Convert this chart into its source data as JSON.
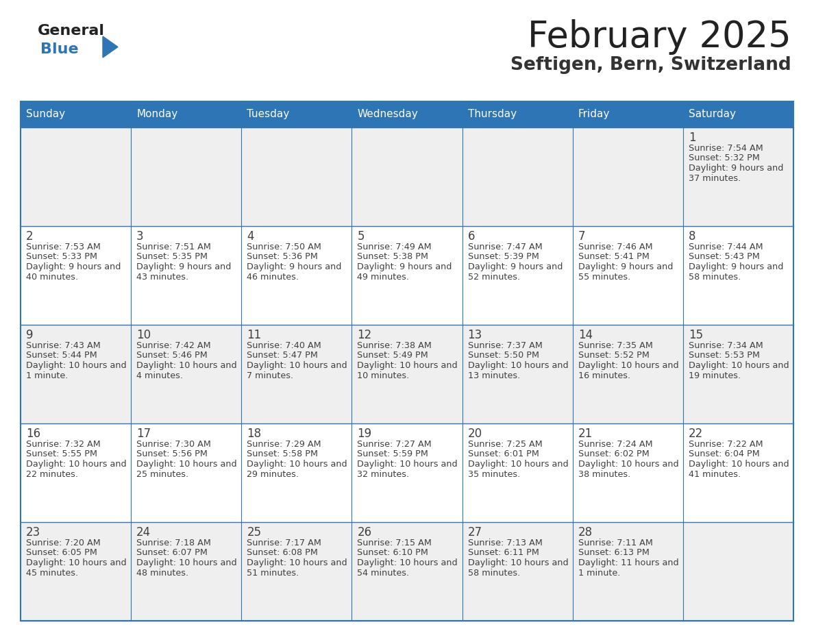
{
  "title": "February 2025",
  "subtitle": "Seftigen, Bern, Switzerland",
  "days_of_week": [
    "Sunday",
    "Monday",
    "Tuesday",
    "Wednesday",
    "Thursday",
    "Friday",
    "Saturday"
  ],
  "header_bg": "#2e75b6",
  "header_text_color": "#ffffff",
  "cell_bg_odd": "#efefef",
  "cell_bg_even": "#ffffff",
  "border_color": "#2e75b6",
  "day_number_color": "#404040",
  "text_color": "#404040",
  "title_color": "#222222",
  "subtitle_color": "#333333",
  "logo_general_color": "#222222",
  "logo_blue_color": "#2e75b6",
  "weeks": [
    [
      null,
      null,
      null,
      null,
      null,
      null,
      1
    ],
    [
      2,
      3,
      4,
      5,
      6,
      7,
      8
    ],
    [
      9,
      10,
      11,
      12,
      13,
      14,
      15
    ],
    [
      16,
      17,
      18,
      19,
      20,
      21,
      22
    ],
    [
      23,
      24,
      25,
      26,
      27,
      28,
      null
    ]
  ],
  "cell_data": {
    "1": {
      "sunrise": "7:54 AM",
      "sunset": "5:32 PM",
      "daylight": "9 hours and 37 minutes"
    },
    "2": {
      "sunrise": "7:53 AM",
      "sunset": "5:33 PM",
      "daylight": "9 hours and 40 minutes"
    },
    "3": {
      "sunrise": "7:51 AM",
      "sunset": "5:35 PM",
      "daylight": "9 hours and 43 minutes"
    },
    "4": {
      "sunrise": "7:50 AM",
      "sunset": "5:36 PM",
      "daylight": "9 hours and 46 minutes"
    },
    "5": {
      "sunrise": "7:49 AM",
      "sunset": "5:38 PM",
      "daylight": "9 hours and 49 minutes"
    },
    "6": {
      "sunrise": "7:47 AM",
      "sunset": "5:39 PM",
      "daylight": "9 hours and 52 minutes"
    },
    "7": {
      "sunrise": "7:46 AM",
      "sunset": "5:41 PM",
      "daylight": "9 hours and 55 minutes"
    },
    "8": {
      "sunrise": "7:44 AM",
      "sunset": "5:43 PM",
      "daylight": "9 hours and 58 minutes"
    },
    "9": {
      "sunrise": "7:43 AM",
      "sunset": "5:44 PM",
      "daylight": "10 hours and 1 minute"
    },
    "10": {
      "sunrise": "7:42 AM",
      "sunset": "5:46 PM",
      "daylight": "10 hours and 4 minutes"
    },
    "11": {
      "sunrise": "7:40 AM",
      "sunset": "5:47 PM",
      "daylight": "10 hours and 7 minutes"
    },
    "12": {
      "sunrise": "7:38 AM",
      "sunset": "5:49 PM",
      "daylight": "10 hours and 10 minutes"
    },
    "13": {
      "sunrise": "7:37 AM",
      "sunset": "5:50 PM",
      "daylight": "10 hours and 13 minutes"
    },
    "14": {
      "sunrise": "7:35 AM",
      "sunset": "5:52 PM",
      "daylight": "10 hours and 16 minutes"
    },
    "15": {
      "sunrise": "7:34 AM",
      "sunset": "5:53 PM",
      "daylight": "10 hours and 19 minutes"
    },
    "16": {
      "sunrise": "7:32 AM",
      "sunset": "5:55 PM",
      "daylight": "10 hours and 22 minutes"
    },
    "17": {
      "sunrise": "7:30 AM",
      "sunset": "5:56 PM",
      "daylight": "10 hours and 25 minutes"
    },
    "18": {
      "sunrise": "7:29 AM",
      "sunset": "5:58 PM",
      "daylight": "10 hours and 29 minutes"
    },
    "19": {
      "sunrise": "7:27 AM",
      "sunset": "5:59 PM",
      "daylight": "10 hours and 32 minutes"
    },
    "20": {
      "sunrise": "7:25 AM",
      "sunset": "6:01 PM",
      "daylight": "10 hours and 35 minutes"
    },
    "21": {
      "sunrise": "7:24 AM",
      "sunset": "6:02 PM",
      "daylight": "10 hours and 38 minutes"
    },
    "22": {
      "sunrise": "7:22 AM",
      "sunset": "6:04 PM",
      "daylight": "10 hours and 41 minutes"
    },
    "23": {
      "sunrise": "7:20 AM",
      "sunset": "6:05 PM",
      "daylight": "10 hours and 45 minutes"
    },
    "24": {
      "sunrise": "7:18 AM",
      "sunset": "6:07 PM",
      "daylight": "10 hours and 48 minutes"
    },
    "25": {
      "sunrise": "7:17 AM",
      "sunset": "6:08 PM",
      "daylight": "10 hours and 51 minutes"
    },
    "26": {
      "sunrise": "7:15 AM",
      "sunset": "6:10 PM",
      "daylight": "10 hours and 54 minutes"
    },
    "27": {
      "sunrise": "7:13 AM",
      "sunset": "6:11 PM",
      "daylight": "10 hours and 58 minutes"
    },
    "28": {
      "sunrise": "7:11 AM",
      "sunset": "6:13 PM",
      "daylight": "11 hours and 1 minute"
    }
  }
}
